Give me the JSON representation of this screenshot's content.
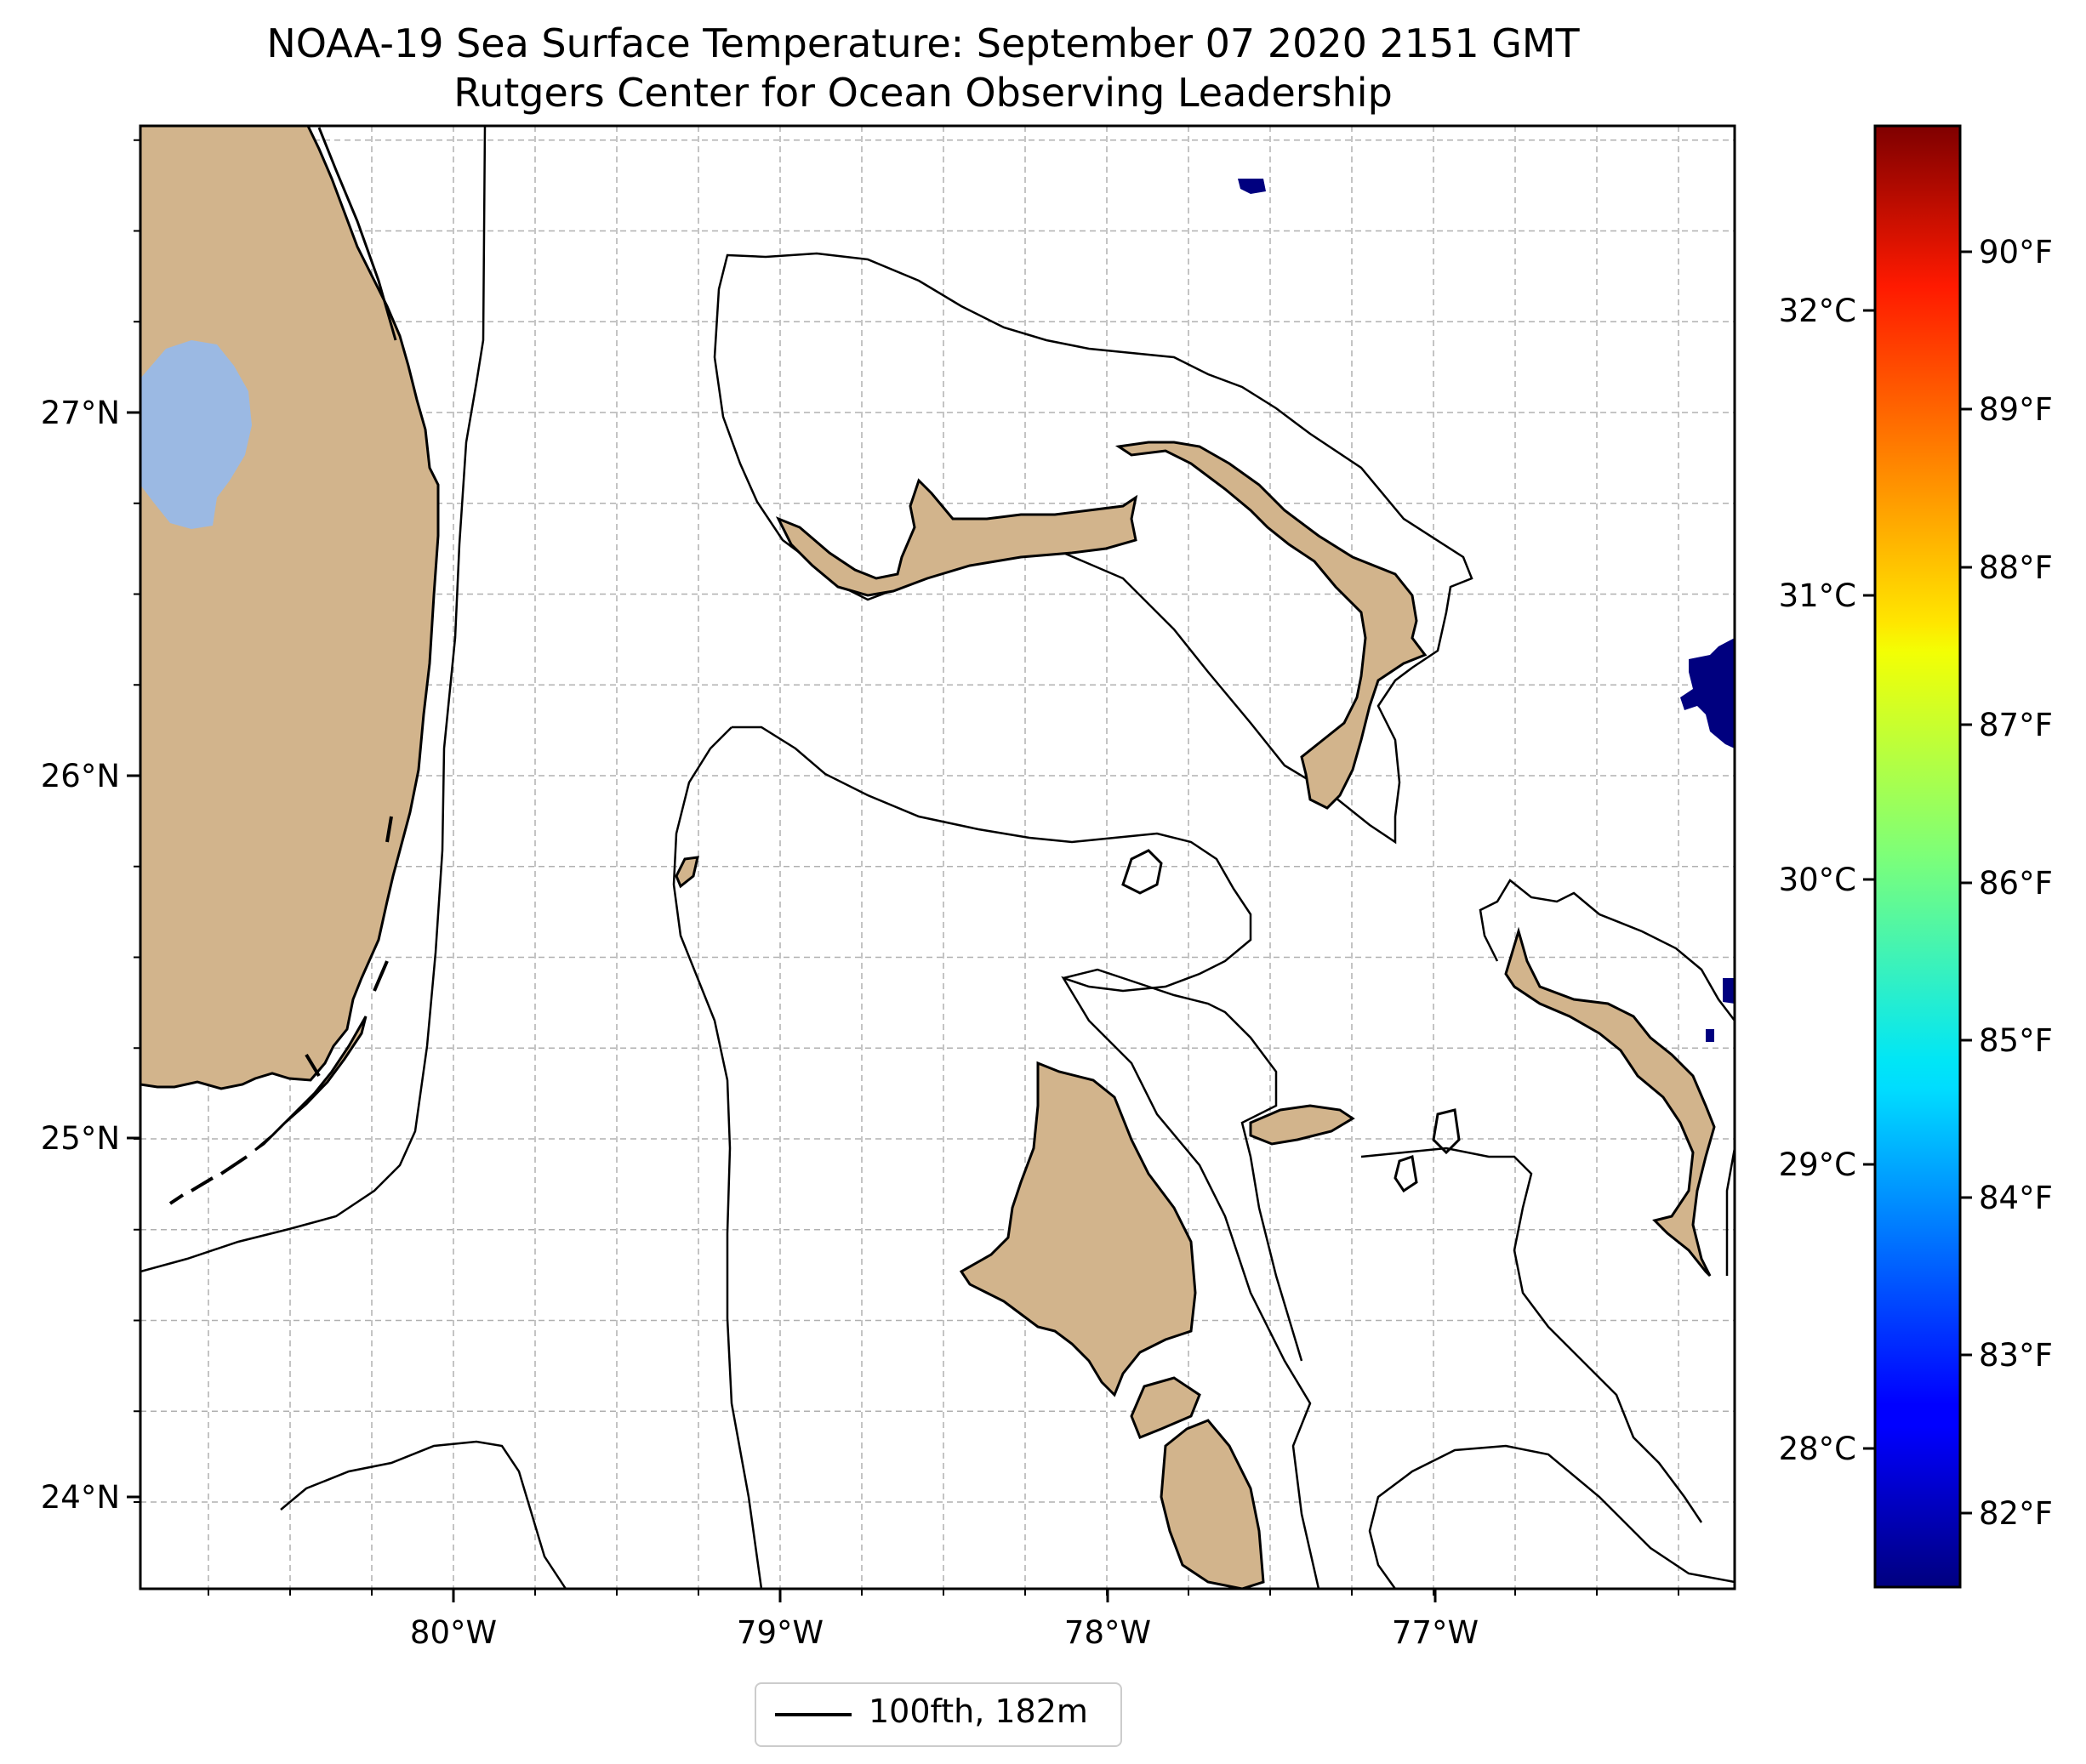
{
  "title": "NOAA-19 Sea Surface Temperature: September 07 2020 2151 GMT",
  "subtitle": "Rutgers Center for Ocean Observing Leadership",
  "map": {
    "lon_labels": [
      "80°W",
      "79°W",
      "78°W",
      "77°W"
    ],
    "lat_labels": [
      "27°N",
      "26°N",
      "25°N",
      "24°N"
    ],
    "gridlines": true,
    "colors": {
      "land": "#d2b48c",
      "lake": "#9bb9e3",
      "ocean": "#ffffff",
      "cold_sst": "#00007f",
      "contour": "#000000"
    }
  },
  "colorbar": {
    "colormap": "jet",
    "celsius_labels": [
      "32°C",
      "31°C",
      "30°C",
      "29°C",
      "28°C"
    ],
    "fahrenheit_labels": [
      "90°F",
      "89°F",
      "88°F",
      "87°F",
      "86°F",
      "85°F",
      "84°F",
      "83°F",
      "82°F"
    ]
  },
  "legend": {
    "label": "100fth, 182m"
  }
}
